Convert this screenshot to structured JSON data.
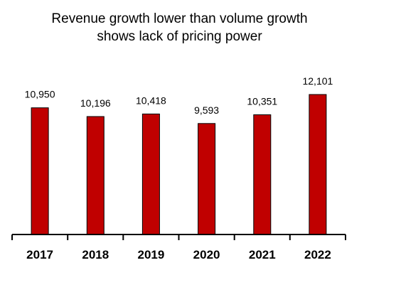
{
  "chart_data": {
    "type": "bar",
    "title_lines": [
      "Revenue growth lower than volume growth",
      "shows lack of pricing power"
    ],
    "categories": [
      "2017",
      "2018",
      "2019",
      "2020",
      "2021",
      "2022"
    ],
    "values": [
      10950,
      10196,
      10418,
      9593,
      10351,
      12101
    ],
    "value_labels": [
      "10,950",
      "10,196",
      "10,418",
      "9,593",
      "10,351",
      "12,101"
    ],
    "xlabel": "",
    "ylabel": "",
    "ylim": [
      0,
      13000
    ],
    "grid": false,
    "legend": "none",
    "colors": {
      "bar_fill": "#c00000",
      "bar_stroke": "#000000",
      "axis": "#000000",
      "text": "#000000"
    }
  }
}
